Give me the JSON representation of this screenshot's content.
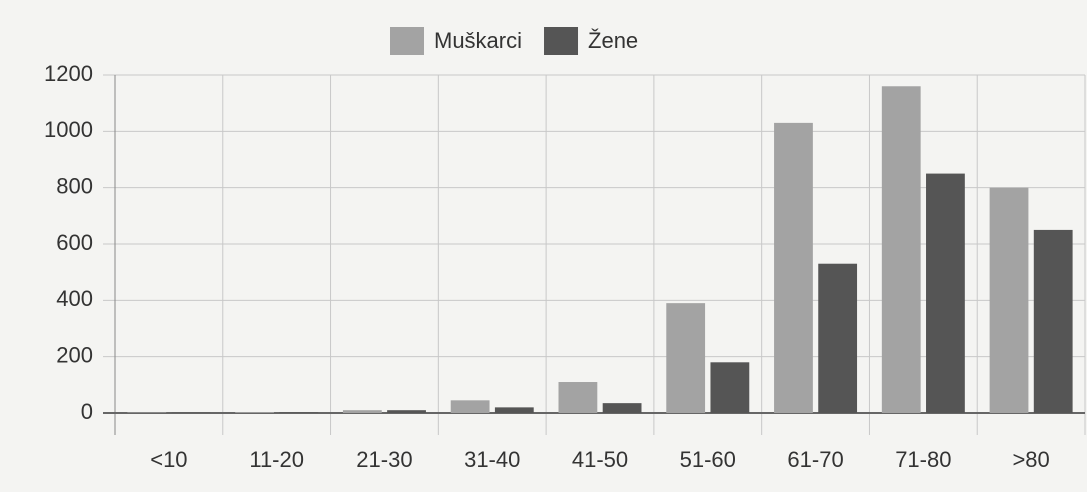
{
  "chart_data": {
    "type": "bar",
    "categories": [
      "<10",
      "11-20",
      "21-30",
      "31-40",
      "41-50",
      "51-60",
      "61-70",
      "71-80",
      ">80"
    ],
    "series": [
      {
        "name": "Muškarci",
        "color": "#a3a3a3",
        "values": [
          2,
          3,
          10,
          45,
          110,
          390,
          1030,
          1160,
          800
        ]
      },
      {
        "name": "Žene",
        "color": "#555555",
        "values": [
          1,
          2,
          10,
          20,
          35,
          180,
          530,
          850,
          650
        ]
      }
    ],
    "ylim": [
      0,
      1200
    ],
    "yticks": [
      0,
      200,
      400,
      600,
      800,
      1000,
      1200
    ],
    "grid": true,
    "legend": "top"
  }
}
